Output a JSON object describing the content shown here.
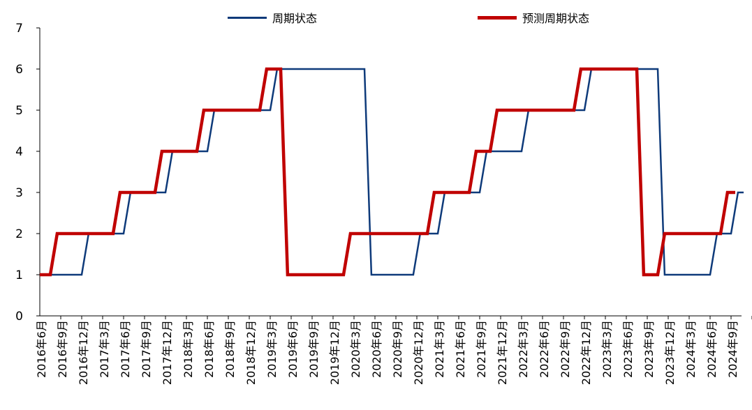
{
  "chart_data": {
    "type": "line",
    "y_ticks": [
      0,
      1,
      2,
      3,
      4,
      5,
      6,
      7
    ],
    "ylim": [
      0,
      7
    ],
    "x_ticks": [
      "2016年6月",
      "2016年9月",
      "2016年12月",
      "2017年3月",
      "2017年6月",
      "2017年9月",
      "2017年12月",
      "2018年3月",
      "2018年6月",
      "2018年9月",
      "2018年12月",
      "2019年3月",
      "2019年6月",
      "2019年9月",
      "2019年12月",
      "2020年3月",
      "2020年6月",
      "2020年9月",
      "2020年12月",
      "2021年3月",
      "2021年6月",
      "2021年9月",
      "2021年12月",
      "2022年3月",
      "2022年6月",
      "2022年9月",
      "2022年12月",
      "2023年3月",
      "2023年6月",
      "2023年9月",
      "2023年12月",
      "2024年3月",
      "2024年6月",
      "2024年9月"
    ],
    "series": [
      {
        "name": "周期状态",
        "color": "#0e3a7a",
        "points": [
          [
            0,
            1
          ],
          [
            2,
            1
          ],
          [
            2.33,
            2
          ],
          [
            4,
            2
          ],
          [
            4.33,
            3
          ],
          [
            5,
            3
          ],
          [
            6,
            3
          ],
          [
            6.33,
            4
          ],
          [
            8,
            4
          ],
          [
            8.33,
            5
          ],
          [
            11,
            5
          ],
          [
            11.33,
            6
          ],
          [
            15.5,
            6
          ],
          [
            15.83,
            1
          ],
          [
            17.83,
            1
          ],
          [
            18.16,
            2
          ],
          [
            19,
            2
          ],
          [
            19.33,
            3
          ],
          [
            21,
            3
          ],
          [
            21.33,
            4
          ],
          [
            23,
            4
          ],
          [
            23.33,
            5
          ],
          [
            26,
            5
          ],
          [
            26.33,
            6
          ],
          [
            29.5,
            6
          ],
          [
            29.83,
            1
          ],
          [
            32,
            1
          ],
          [
            32.33,
            2
          ],
          [
            33,
            2
          ],
          [
            33.33,
            3
          ],
          [
            33.6,
            3
          ]
        ]
      },
      {
        "name": "预测周期状态",
        "color": "#c00000",
        "points": [
          [
            0,
            1
          ],
          [
            0.5,
            1
          ],
          [
            0.83,
            2
          ],
          [
            3.5,
            2
          ],
          [
            3.83,
            3
          ],
          [
            5.5,
            3
          ],
          [
            5.83,
            4
          ],
          [
            7.5,
            4
          ],
          [
            7.83,
            5
          ],
          [
            10.5,
            5
          ],
          [
            10.83,
            6
          ],
          [
            11.5,
            6
          ],
          [
            11.83,
            1
          ],
          [
            14.5,
            1
          ],
          [
            14.83,
            2
          ],
          [
            18.5,
            2
          ],
          [
            18.83,
            3
          ],
          [
            20.5,
            3
          ],
          [
            20.83,
            4
          ],
          [
            21.5,
            4
          ],
          [
            21.83,
            5
          ],
          [
            25.5,
            5
          ],
          [
            25.83,
            6
          ],
          [
            28.5,
            6
          ],
          [
            28.83,
            1
          ],
          [
            29.5,
            1
          ],
          [
            29.83,
            2
          ],
          [
            32.5,
            2
          ],
          [
            32.83,
            3
          ],
          [
            33.2,
            3
          ]
        ]
      }
    ]
  }
}
